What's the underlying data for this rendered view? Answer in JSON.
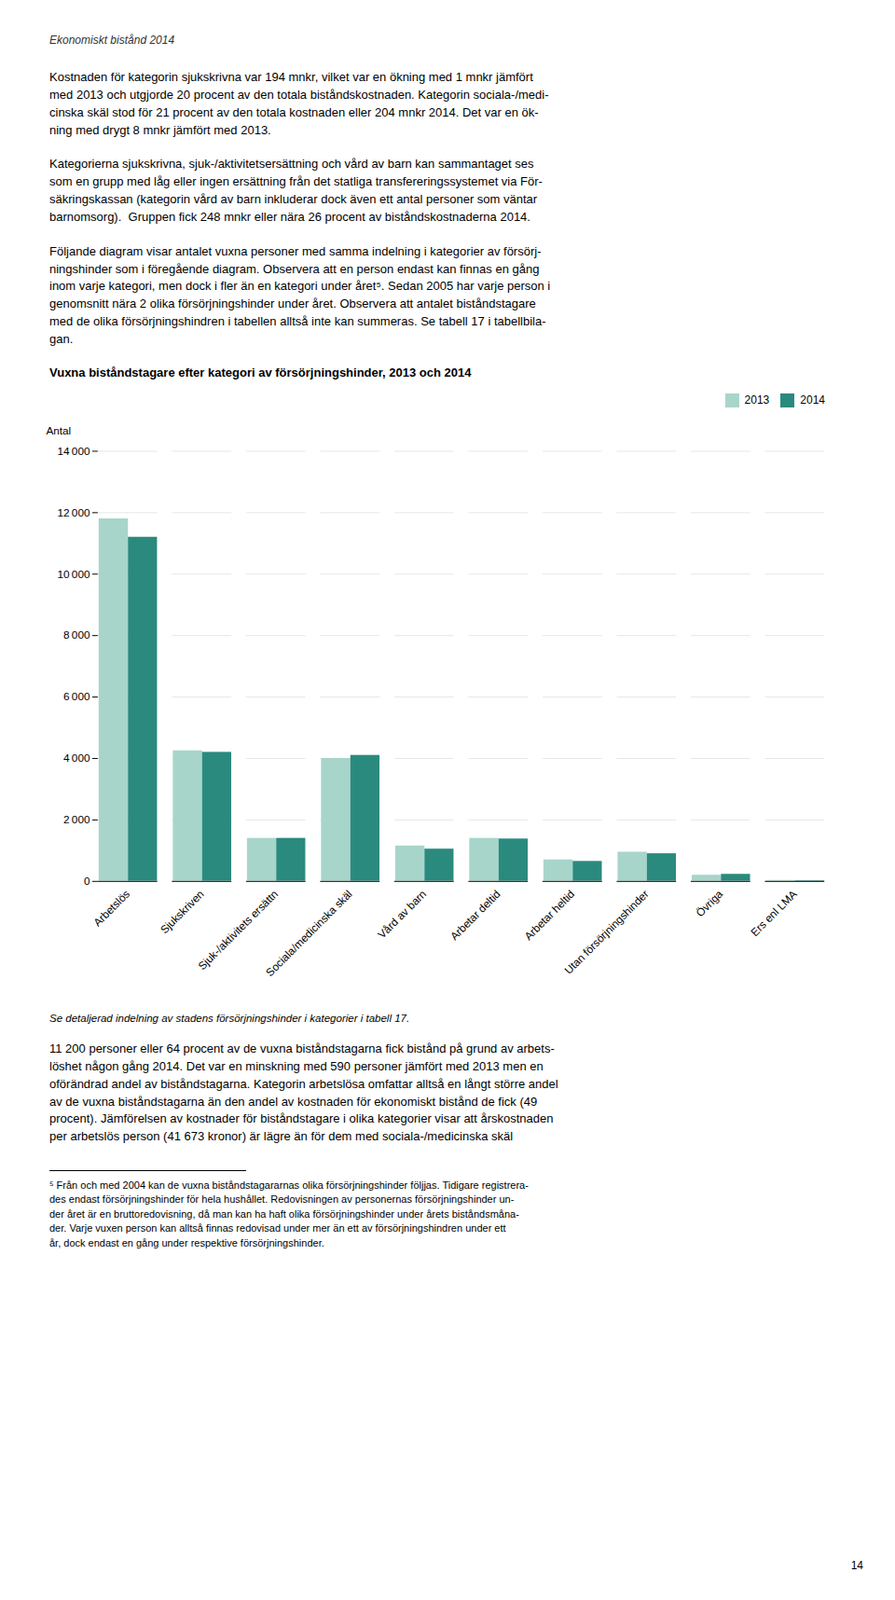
{
  "page_title": "Ekonomiskt bistånd 2014",
  "body_texts": [
    "Kostnaden för kategorin sjukskrivna var 194 mnkr, vilket var en ökning med 1 mnkr jämfört\nmed 2013 och utgjorde 20 procent av den totala biståndskostnaden. Kategorin sociala-/medi-\ncinska skäl stod för 21 procent av den totala kostnaden eller 204 mnkr 2014. Det var en ök-\nning med drygt 8 mnkr jämfört med 2013.",
    "Kategorierna sjukskrivna, sjuk-/aktivitetsersättning och vård av barn kan sammantaget ses\nsom en grupp med låg eller ingen ersättning från det statliga transfereringssystemet via För-\nsäkringskassan (kategorin vård av barn inkluderar dock även ett antal personer som väntar\nbarnomsorg).  Gruppen fick 248 mnkr eller nära 26 procent av biståndskostnaderna 2014.",
    "Följande diagram visar antalet vuxna personer med samma indelning i kategorier av försörj-\nningshinder som i föregående diagram. Observera att en person endast kan finnas en gång\ninom varje kategori, men dock i fler än en kategori under året⁵. Sedan 2005 har varje person i\ngenomsnitt nära 2 olika försörjningshinder under året. Observera att antalet biståndstagare\nmed de olika försörjningshindren i tabellen alltså inte kan summeras. Se tabell 17 i tabellbila-\ngan."
  ],
  "chart_data": {
    "type": "bar",
    "title": "Vuxna biståndstagare efter kategori av försörjningshinder, 2013 och 2014",
    "ylabel": "Antal",
    "categories": [
      "Arbetslös",
      "Sjukskriven",
      "Sjuk-/aktivitets ersättn",
      "Sociala/medicinska skäl",
      "Vård av barn",
      "Arbetar deltid",
      "Arbetar heltid",
      "Utan försörjningshinder",
      "Övriga",
      "Ers enl LMA"
    ],
    "series": [
      {
        "name": "2013",
        "color": "#a8d5ca",
        "values": [
          11800,
          4250,
          1400,
          4000,
          1150,
          1400,
          700,
          950,
          200,
          30
        ]
      },
      {
        "name": "2014",
        "color": "#2a8a7e",
        "values": [
          11200,
          4200,
          1400,
          4100,
          1050,
          1380,
          650,
          900,
          230,
          25
        ]
      }
    ],
    "ylim": [
      0,
      14000
    ],
    "yticks": [
      0,
      {
        "value": 2000,
        "label": "2 000"
      },
      {
        "value": 4000,
        "label": "4 000"
      },
      {
        "value": 6000,
        "label": "6 000"
      },
      {
        "value": 8000,
        "label": "8 000"
      },
      {
        "value": 10000,
        "label": "10 000"
      },
      {
        "value": 12000,
        "label": "12 000"
      },
      {
        "value": 14000,
        "label": "14 000"
      }
    ],
    "grid": true,
    "legend": "upper right"
  },
  "caption": "Se detaljerad indelning av stadens försörjningshinder i kategorier i tabell 17.",
  "body_text_after": "11 200 personer eller 64 procent av de vuxna biståndstagarna fick bistånd på grund av arbets-\nlöshet någon gång 2014. Det var en minskning med 590 personer jämfört med 2013 men en\noförändrad andel av biståndstagarna. Kategorin arbetslösa omfattar alltså en långt större andel\nav de vuxna biståndstagarna än den andel av kostnaden för ekonomiskt bistånd de fick (49\nprocent). Jämförelsen av kostnader för biståndstagare i olika kategorier visar att årskostnaden\nper arbetslös person (41 673 kronor) är lägre än för dem med sociala-/medicinska skäl",
  "footnote": "⁵ Från och med 2004 kan de vuxna biståndstagararnas olika försörjningshinder följjas. Tidigare registrera-\ndes endast försörjningshinder för hela hushållet. Redovisningen av personernas försörjningshinder un-\nder året är en bruttoredovisning, då man kan ha haft olika försörjningshinder under årets biståndsmåna-\nder. Varje vuxen person kan alltså finnas redovisad under mer än ett av försörjningshindren under ett\når, dock endast en gång under respektive försörjningshinder.",
  "page_number": "14"
}
